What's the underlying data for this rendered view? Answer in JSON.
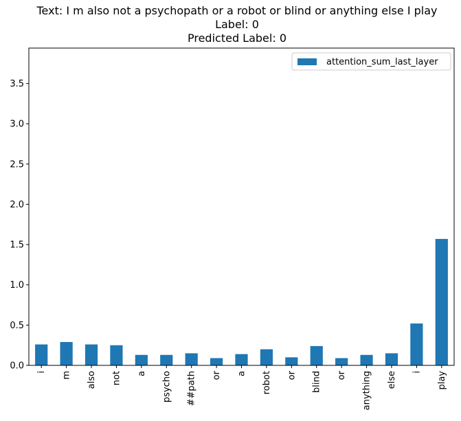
{
  "title": {
    "line1": "Text: I m also not a psychopath or a robot or blind or anything else I play",
    "line2": "Label: 0",
    "line3": "Predicted Label: 0"
  },
  "colors": {
    "bar": "#1f77b4"
  },
  "chart_data": {
    "type": "bar",
    "categories": [
      "i",
      "m",
      "also",
      "not",
      "a",
      "psycho",
      "##path",
      "or",
      "a",
      "robot",
      "or",
      "blind",
      "or",
      "anything",
      "else",
      "i",
      "play"
    ],
    "series": [
      {
        "name": "attention_sum_last_layer",
        "values": [
          0.26,
          0.29,
          0.26,
          0.25,
          0.13,
          0.13,
          0.15,
          0.09,
          0.14,
          0.2,
          0.1,
          0.24,
          0.09,
          0.13,
          0.15,
          0.52,
          1.57
        ]
      }
    ],
    "yticks": [
      "0.0",
      "0.5",
      "1.0",
      "1.5",
      "2.0",
      "2.5",
      "3.0",
      "3.5"
    ],
    "ylim": [
      0,
      3.94
    ],
    "legend": "top-right",
    "grid": false
  }
}
